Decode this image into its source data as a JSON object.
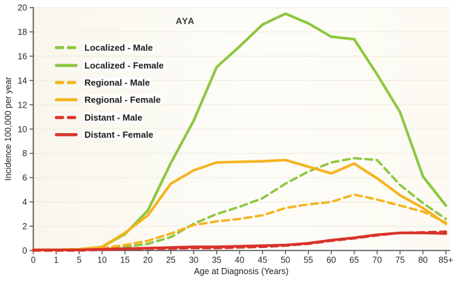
{
  "figure": {
    "plot_label": "AYA",
    "x_axis_title": "Age at Diagnosis (Years)",
    "y_axis_title": "Incidence 100,000 per year"
  },
  "chart_data": {
    "type": "line",
    "title": "AYA",
    "xlabel": "Age at Diagnosis (Years)",
    "ylabel": "Incidence 100,000 per year",
    "ylim": [
      0,
      20
    ],
    "yticks": [
      0,
      2,
      4,
      6,
      8,
      10,
      12,
      14,
      16,
      18,
      20
    ],
    "categories": [
      "0",
      "1",
      "5",
      "10",
      "15",
      "20",
      "25",
      "30",
      "35",
      "40",
      "45",
      "50",
      "55",
      "60",
      "65",
      "70",
      "75",
      "80",
      "85+"
    ],
    "grid": "horizontal only, very faint",
    "legend_position": "upper-left inside plot",
    "series": [
      {
        "name": "Localized - Male",
        "color": "#8DC63F",
        "style": "dashed",
        "values": [
          0,
          0,
          0.05,
          0.15,
          0.3,
          0.55,
          1.1,
          2.2,
          3.0,
          3.6,
          4.3,
          5.5,
          6.5,
          7.25,
          7.6,
          7.45,
          5.4,
          3.9,
          2.6
        ]
      },
      {
        "name": "Localized - Female",
        "color": "#8DC63F",
        "style": "solid",
        "values": [
          0.05,
          0.05,
          0.1,
          0.3,
          1.35,
          3.3,
          7.2,
          10.7,
          15.1,
          16.8,
          18.6,
          19.5,
          18.7,
          17.6,
          17.4,
          14.5,
          11.4,
          6.1,
          3.7
        ]
      },
      {
        "name": "Regional - Male",
        "color": "#F5B31E",
        "style": "dashed",
        "values": [
          0,
          0,
          0.05,
          0.2,
          0.45,
          0.8,
          1.4,
          2.1,
          2.4,
          2.6,
          2.9,
          3.5,
          3.8,
          4.0,
          4.6,
          4.2,
          3.7,
          3.2,
          2.3
        ]
      },
      {
        "name": "Regional - Female",
        "color": "#F5B31E",
        "style": "solid",
        "values": [
          0.05,
          0.05,
          0.1,
          0.3,
          1.45,
          2.9,
          5.5,
          6.6,
          7.25,
          7.3,
          7.35,
          7.45,
          6.9,
          6.35,
          7.15,
          5.95,
          4.55,
          3.5,
          2.2
        ]
      },
      {
        "name": "Distant - Male",
        "color": "#D8322B",
        "style": "dashed",
        "values": [
          0,
          0,
          0,
          0.05,
          0.1,
          0.15,
          0.15,
          0.2,
          0.2,
          0.25,
          0.3,
          0.4,
          0.55,
          0.8,
          1.0,
          1.25,
          1.45,
          1.5,
          1.55
        ]
      },
      {
        "name": "Distant - Female",
        "color": "#D8322B",
        "style": "solid",
        "values": [
          0.05,
          0.05,
          0.05,
          0.1,
          0.15,
          0.2,
          0.25,
          0.3,
          0.3,
          0.35,
          0.4,
          0.45,
          0.6,
          0.85,
          1.05,
          1.3,
          1.45,
          1.45,
          1.4
        ]
      }
    ]
  }
}
